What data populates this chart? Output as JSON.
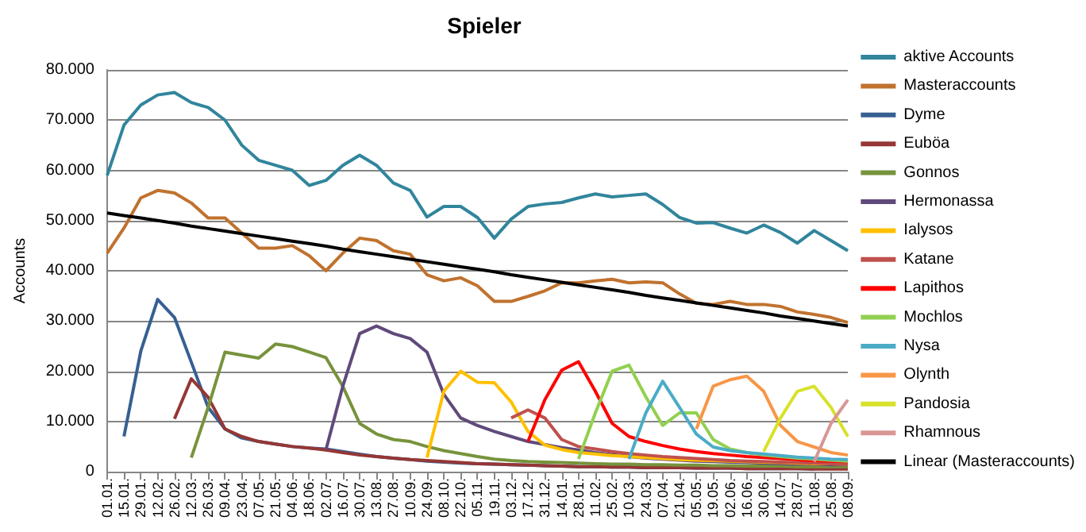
{
  "chart_data": {
    "type": "line",
    "title": "Spieler",
    "ylabel": "Accounts",
    "categories": [
      "01.01.",
      "15.01.",
      "29.01.",
      "12.02.",
      "26.02.",
      "12.03.",
      "26.03.",
      "09.04.",
      "23.04.",
      "07.05.",
      "21.05.",
      "04.06.",
      "18.06.",
      "02.07.",
      "16.07.",
      "30.07.",
      "13.08.",
      "27.08.",
      "10.09.",
      "24.09.",
      "08.10.",
      "22.10.",
      "05.11.",
      "19.11.",
      "03.12.",
      "17.12.",
      "31.12.",
      "14.01.",
      "28.01.",
      "11.02.",
      "25.02.",
      "10.03.",
      "24.03.",
      "07.04.",
      "21.04.",
      "05.05.",
      "19.05.",
      "02.06.",
      "16.06.",
      "30.06.",
      "14.07.",
      "28.07.",
      "11.08.",
      "25.08.",
      "08.09."
    ],
    "ylim": [
      0,
      80000
    ],
    "yticks": [
      {
        "value": 0,
        "label": "0"
      },
      {
        "value": 10000,
        "label": "10.000"
      },
      {
        "value": 20000,
        "label": "20.000"
      },
      {
        "value": 30000,
        "label": "30.000"
      },
      {
        "value": 40000,
        "label": "40.000"
      },
      {
        "value": 50000,
        "label": "50.000"
      },
      {
        "value": 60000,
        "label": "60.000"
      },
      {
        "value": 70000,
        "label": "70.000"
      },
      {
        "value": 80000,
        "label": "80.000"
      }
    ],
    "grid": "y",
    "legend": "right",
    "marker": "none",
    "line_style": "solid",
    "series": [
      {
        "name": "aktive Accounts",
        "color": "#31859c",
        "values": [
          59000,
          69000,
          73000,
          75000,
          75500,
          73500,
          72500,
          70000,
          65000,
          62000,
          61000,
          60000,
          57000,
          58000,
          61000,
          63000,
          61000,
          57500,
          56000,
          50700,
          52800,
          52800,
          50600,
          46500,
          50300,
          52800,
          53300,
          53600,
          54500,
          55300,
          54700,
          55000,
          55300,
          53200,
          50600,
          49500,
          49600,
          48500,
          47500,
          49100,
          47600,
          45500,
          48000,
          46000,
          44000
        ]
      },
      {
        "name": "Masteraccounts",
        "color": "#c0722e",
        "values": [
          43500,
          48500,
          54500,
          56000,
          55500,
          53500,
          50500,
          50500,
          47500,
          44500,
          44500,
          45000,
          43000,
          40000,
          43500,
          46500,
          46000,
          44000,
          43300,
          39200,
          38000,
          38600,
          37000,
          33900,
          33900,
          34900,
          36000,
          37600,
          37600,
          38000,
          38300,
          37600,
          37800,
          37600,
          35400,
          33500,
          33300,
          33900,
          33300,
          33300,
          32900,
          31800,
          31300,
          30700,
          29700
        ]
      },
      {
        "name": "Dyme",
        "color": "#376092",
        "values": [
          null,
          7000,
          24000,
          34300,
          30700,
          21800,
          12800,
          8500,
          6700,
          6000,
          5500,
          5000,
          4700,
          4500,
          4000,
          3500,
          3000,
          2700,
          2400,
          2100,
          1900,
          1700,
          1600,
          1500,
          1400,
          1300,
          1200,
          1100,
          1000,
          1000,
          900,
          900,
          800,
          800,
          800,
          700,
          700,
          700,
          600,
          600,
          600,
          600,
          500,
          null,
          null
        ]
      },
      {
        "name": "Euböa",
        "color": "#953735",
        "values": [
          null,
          null,
          null,
          null,
          10500,
          18500,
          14800,
          8500,
          7000,
          6000,
          5500,
          5000,
          4700,
          4300,
          3800,
          3300,
          3000,
          2700,
          2400,
          2200,
          2000,
          1800,
          1600,
          1500,
          1400,
          1300,
          1200,
          1100,
          1000,
          1000,
          900,
          900,
          800,
          800,
          800,
          700,
          700,
          700,
          600,
          600,
          600,
          600,
          500,
          500,
          500
        ]
      },
      {
        "name": "Gonnos",
        "color": "#77933c",
        "values": [
          null,
          null,
          null,
          null,
          null,
          2800,
          12800,
          23800,
          23200,
          22600,
          25400,
          24900,
          23800,
          22700,
          17000,
          9600,
          7500,
          6400,
          6000,
          5000,
          4200,
          3600,
          3000,
          2500,
          2200,
          2000,
          1900,
          1800,
          1700,
          1600,
          1500,
          1500,
          1400,
          1400,
          1300,
          1300,
          1200,
          1200,
          1100,
          1100,
          1100,
          1000,
          1000,
          1000,
          1000
        ]
      },
      {
        "name": "Hermonassa",
        "color": "#604a7b",
        "values": [
          null,
          null,
          null,
          null,
          null,
          null,
          null,
          null,
          null,
          null,
          null,
          null,
          null,
          4400,
          17000,
          27500,
          29000,
          27500,
          26500,
          23800,
          15400,
          10700,
          9200,
          8000,
          7000,
          6000,
          5400,
          4800,
          4300,
          3800,
          3400,
          3000,
          2700,
          2500,
          2300,
          2100,
          2000,
          1900,
          1800,
          1700,
          1600,
          1500,
          1500,
          1400,
          1400
        ]
      },
      {
        "name": "Ialysos",
        "color": "#ffc000",
        "values": [
          null,
          null,
          null,
          null,
          null,
          null,
          null,
          null,
          null,
          null,
          null,
          null,
          null,
          null,
          null,
          null,
          null,
          null,
          null,
          2800,
          16000,
          20000,
          17800,
          17700,
          13900,
          8000,
          5300,
          4400,
          3800,
          3500,
          3200,
          3000,
          2800,
          2600,
          2400,
          2300,
          2200,
          2100,
          2000,
          1900,
          1800,
          1700,
          1600,
          1600,
          1500
        ]
      },
      {
        "name": "Katane",
        "color": "#c0504d",
        "values": [
          null,
          null,
          null,
          null,
          null,
          null,
          null,
          null,
          null,
          null,
          null,
          null,
          null,
          null,
          null,
          null,
          null,
          null,
          null,
          null,
          null,
          null,
          null,
          null,
          10700,
          12300,
          10700,
          6400,
          5000,
          4500,
          4000,
          3600,
          3300,
          3000,
          2800,
          2600,
          2400,
          2200,
          2100,
          2000,
          1900,
          1800,
          1700,
          1600,
          1500
        ]
      },
      {
        "name": "Lapithos",
        "color": "#ff0000",
        "values": [
          null,
          null,
          null,
          null,
          null,
          null,
          null,
          null,
          null,
          null,
          null,
          null,
          null,
          null,
          null,
          null,
          null,
          null,
          null,
          null,
          null,
          null,
          null,
          null,
          null,
          6000,
          14300,
          20200,
          21900,
          16000,
          9600,
          7000,
          6000,
          5200,
          4500,
          4000,
          3600,
          3300,
          3000,
          2800,
          2600,
          2400,
          2200,
          2100,
          2000
        ]
      },
      {
        "name": "Mochlos",
        "color": "#92d050",
        "values": [
          null,
          null,
          null,
          null,
          null,
          null,
          null,
          null,
          null,
          null,
          null,
          null,
          null,
          null,
          null,
          null,
          null,
          null,
          null,
          null,
          null,
          null,
          null,
          null,
          null,
          null,
          null,
          null,
          2500,
          11700,
          20000,
          21200,
          14900,
          9200,
          11700,
          11700,
          6400,
          4500,
          3800,
          3300,
          3000,
          2700,
          2500,
          2300,
          2100
        ]
      },
      {
        "name": "Nysa",
        "color": "#4bacc6",
        "values": [
          null,
          null,
          null,
          null,
          null,
          null,
          null,
          null,
          null,
          null,
          null,
          null,
          null,
          null,
          null,
          null,
          null,
          null,
          null,
          null,
          null,
          null,
          null,
          null,
          null,
          null,
          null,
          null,
          null,
          null,
          null,
          2500,
          11700,
          18000,
          12800,
          7500,
          4900,
          4200,
          3800,
          3500,
          3200,
          2900,
          2700,
          2500,
          2400
        ]
      },
      {
        "name": "Olynth",
        "color": "#f79646",
        "values": [
          null,
          null,
          null,
          null,
          null,
          null,
          null,
          null,
          null,
          null,
          null,
          null,
          null,
          null,
          null,
          null,
          null,
          null,
          null,
          null,
          null,
          null,
          null,
          null,
          null,
          null,
          null,
          null,
          null,
          null,
          null,
          null,
          null,
          null,
          null,
          8500,
          17000,
          18300,
          19000,
          16000,
          9200,
          6000,
          4900,
          3800,
          3300
        ]
      },
      {
        "name": "Pandosia",
        "color": "#d7e22a",
        "values": [
          null,
          null,
          null,
          null,
          null,
          null,
          null,
          null,
          null,
          null,
          null,
          null,
          null,
          null,
          null,
          null,
          null,
          null,
          null,
          null,
          null,
          null,
          null,
          null,
          null,
          null,
          null,
          null,
          null,
          null,
          null,
          null,
          null,
          null,
          null,
          null,
          null,
          null,
          null,
          4000,
          10700,
          16000,
          17000,
          12800,
          7000
        ]
      },
      {
        "name": "Rhamnous",
        "color": "#d99694",
        "values": [
          null,
          null,
          null,
          null,
          null,
          null,
          null,
          null,
          null,
          null,
          null,
          null,
          null,
          null,
          null,
          null,
          null,
          null,
          null,
          null,
          null,
          null,
          null,
          null,
          null,
          null,
          null,
          null,
          null,
          null,
          null,
          null,
          null,
          null,
          null,
          null,
          null,
          null,
          null,
          null,
          null,
          null,
          2000,
          9600,
          14300
        ]
      },
      {
        "name": "Linear (Masteraccounts)",
        "color": "#000000",
        "values": [
          51500,
          51000,
          50500,
          50000,
          49500,
          48900,
          48400,
          47900,
          47400,
          46900,
          46400,
          45900,
          45400,
          44900,
          44300,
          43800,
          43300,
          42800,
          42300,
          41800,
          41300,
          40800,
          40300,
          39800,
          39200,
          38700,
          38200,
          37700,
          37200,
          36700,
          36200,
          35700,
          35100,
          34600,
          34100,
          33600,
          33100,
          32600,
          32100,
          31600,
          31000,
          30500,
          30000,
          29500,
          29000
        ]
      }
    ]
  }
}
